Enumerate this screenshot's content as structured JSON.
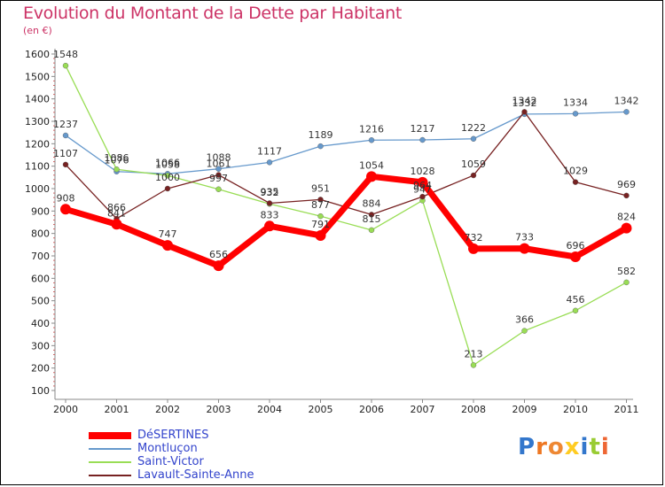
{
  "chart_data": {
    "type": "line",
    "title": "Evolution du Montant de la Dette par Habitant",
    "subtitle": "(en €)",
    "x": [
      "2000",
      "2001",
      "2002",
      "2003",
      "2004",
      "2005",
      "2006",
      "2007",
      "2008",
      "2009",
      "2010",
      "2011"
    ],
    "y_ticks": [
      "100",
      "200",
      "300",
      "400",
      "500",
      "600",
      "700",
      "800",
      "900",
      "1000",
      "1100",
      "1200",
      "1300",
      "1400",
      "1500",
      "1600"
    ],
    "ylim": [
      100,
      1600
    ],
    "grid": false,
    "legend_position": "bottom-left",
    "series": [
      {
        "name": "DéSERTINES",
        "color": "#ff0000",
        "values": [
          908,
          841,
          747,
          656,
          833,
          791,
          1054,
          1028,
          732,
          733,
          696,
          824
        ]
      },
      {
        "name": "Montluçon",
        "color": "#6699cc",
        "values": [
          1237,
          1076,
          1066,
          1088,
          1117,
          1189,
          1216,
          1217,
          1222,
          1332,
          1334,
          1342
        ]
      },
      {
        "name": "Saint-Victor",
        "color": "#99dd55",
        "values": [
          1548,
          1086,
          1058,
          997,
          932,
          877,
          815,
          947,
          213,
          366,
          456,
          582
        ]
      },
      {
        "name": "Lavault-Sainte-Anne",
        "color": "#772222",
        "values": [
          1107,
          866,
          1000,
          1061,
          935,
          951,
          884,
          964,
          1059,
          1342,
          1029,
          969
        ]
      }
    ]
  },
  "logo": {
    "text": "Proxiti"
  }
}
